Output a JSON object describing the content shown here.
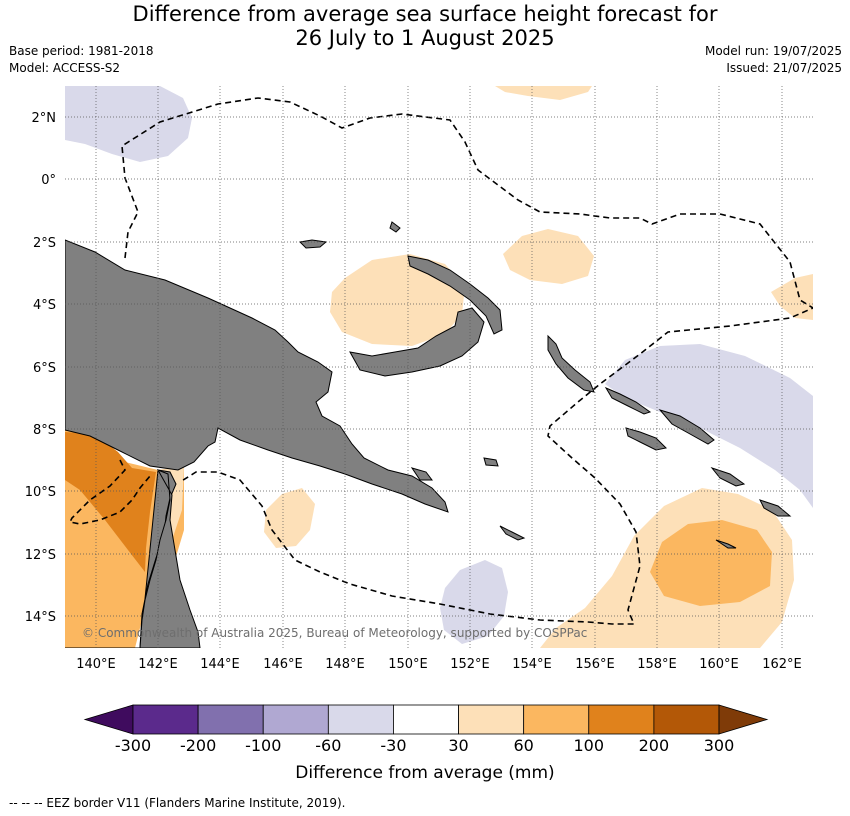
{
  "title": {
    "line1": "Difference from average sea surface height forecast for",
    "line2": "26 July to 1 August 2025"
  },
  "meta": {
    "base_period": "Base period: 1981-2018",
    "model": "Model: ACCESS-S2",
    "model_run": "Model run: 19/07/2025",
    "issued": "Issued: 21/07/2025"
  },
  "axes": {
    "lat_labels": [
      "2°N",
      "0°",
      "2°S",
      "4°S",
      "6°S",
      "8°S",
      "10°S",
      "12°S",
      "14°S"
    ],
    "lon_labels": [
      "140°E",
      "142°E",
      "144°E",
      "146°E",
      "148°E",
      "150°E",
      "152°E",
      "154°E",
      "156°E",
      "158°E",
      "160°E",
      "162°E"
    ],
    "lat_range": [
      -15,
      3
    ],
    "lon_range": [
      139,
      163
    ]
  },
  "copyright": "© Commonwealth of Australia 2025, Bureau of Meteorology, supported by COSPPac",
  "colorbar": {
    "label": "Difference from average (mm)",
    "ticks": [
      "-300",
      "-200",
      "-100",
      "-60",
      "-30",
      "30",
      "60",
      "100",
      "200",
      "300"
    ],
    "colors": [
      "#3f0b5e",
      "#5b2a8c",
      "#8170ae",
      "#b0a8d2",
      "#d9d9ea",
      "#ffffff",
      "#fde0b8",
      "#fbb760",
      "#e0821c",
      "#b35807",
      "#7f3b08"
    ]
  },
  "colors": {
    "land": "#808080",
    "gridline": "#555555"
  },
  "footnote": "--  --  -- EEZ border V11 (Flanders Marine Institute, 2019)."
}
